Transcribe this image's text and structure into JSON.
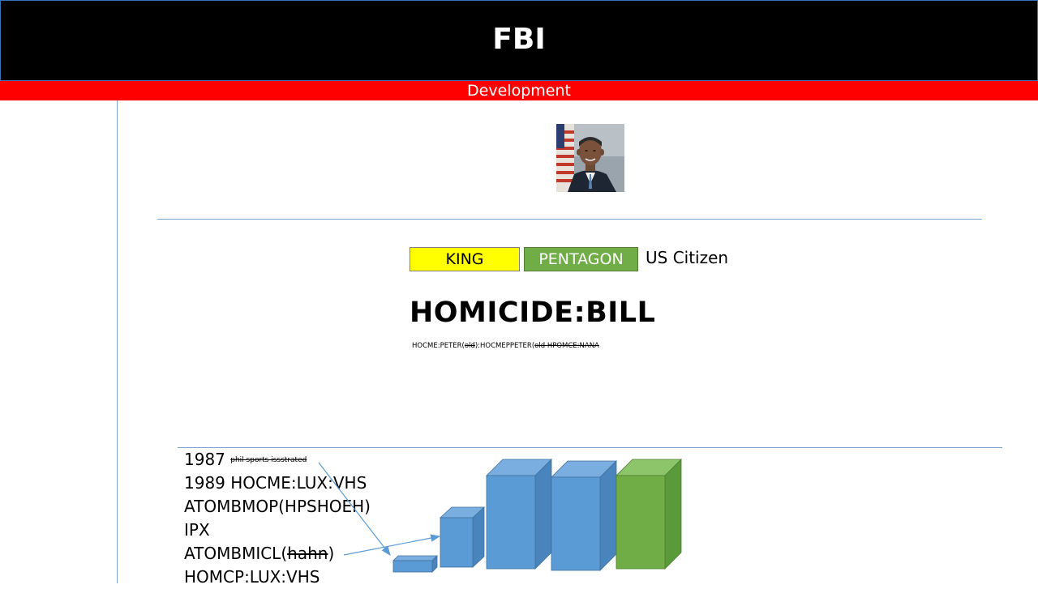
{
  "header": {
    "title": "FBI",
    "subtitle": "Development"
  },
  "profile": {
    "photo_icon": "portrait-photo",
    "tags": {
      "king": "KING",
      "pentagon": "PENTAGON"
    },
    "citizenship": "US Citizen",
    "headline": "HOMICIDE:BILL",
    "aliases": {
      "part1": "HOCME:PETER(",
      "part1_struck": "old",
      "part2": "):HOCMEPPETER(",
      "part2_struck": "old HPOMCE:NANA"
    }
  },
  "timeline": {
    "row1_year": "1987",
    "row1_struck": "phil sports issstrated",
    "row2": "1989 HOCME:LUX:VHS",
    "row3": "ATOMBMOP(HPSHOEH)",
    "row4": "IPX",
    "row5_prefix": "ATOMBMICL(",
    "row5_struck": "hahn",
    "row5_suffix": ")",
    "row6": "HOMCP:LUX:VHS"
  },
  "colors": {
    "header_bg": "#000000",
    "subtitle_bg": "#ff0000",
    "king_bg": "#ffff00",
    "pentagon_bg": "#70ad47",
    "bar_blue": "#5b9bd5",
    "bar_green": "#70ad47",
    "rule": "#7aa3cf"
  }
}
